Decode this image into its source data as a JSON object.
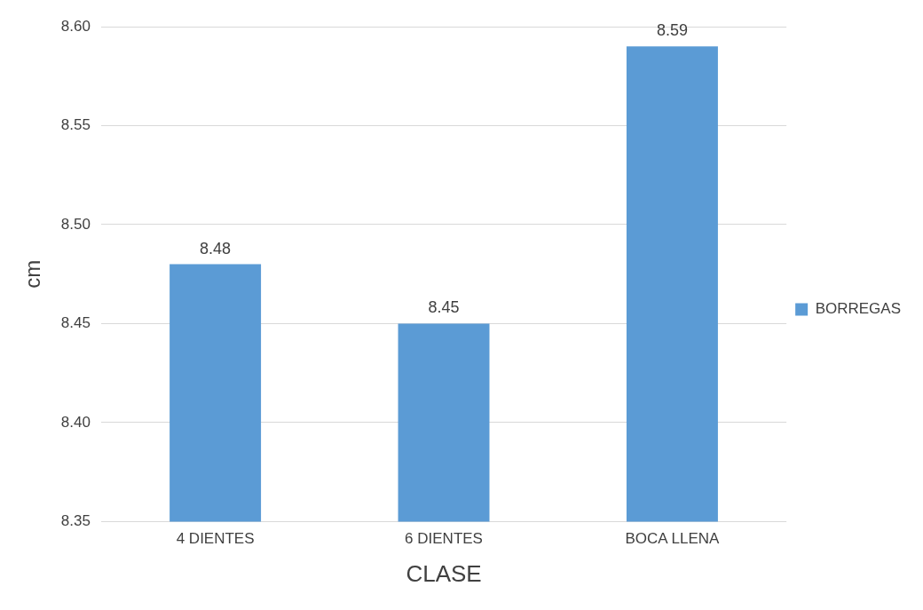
{
  "chart_data": {
    "type": "bar",
    "xlabel": "CLASE",
    "ylabel": "cm",
    "categories": [
      "4 DIENTES",
      "6 DIENTES",
      "BOCA LLENA"
    ],
    "series": [
      {
        "name": "BORREGAS",
        "color": "#5b9bd5",
        "values": [
          8.48,
          8.45,
          8.59
        ]
      }
    ],
    "ylim": [
      8.35,
      8.6
    ],
    "yticks": [
      8.35,
      {
        "value": 8.4,
        "label": "8.40"
      },
      8.45,
      {
        "value": 8.5,
        "label": "8.50"
      },
      8.55,
      {
        "value": 8.6,
        "label": "8.60"
      }
    ],
    "grid": "y",
    "legend": "right",
    "data_labels": true
  }
}
